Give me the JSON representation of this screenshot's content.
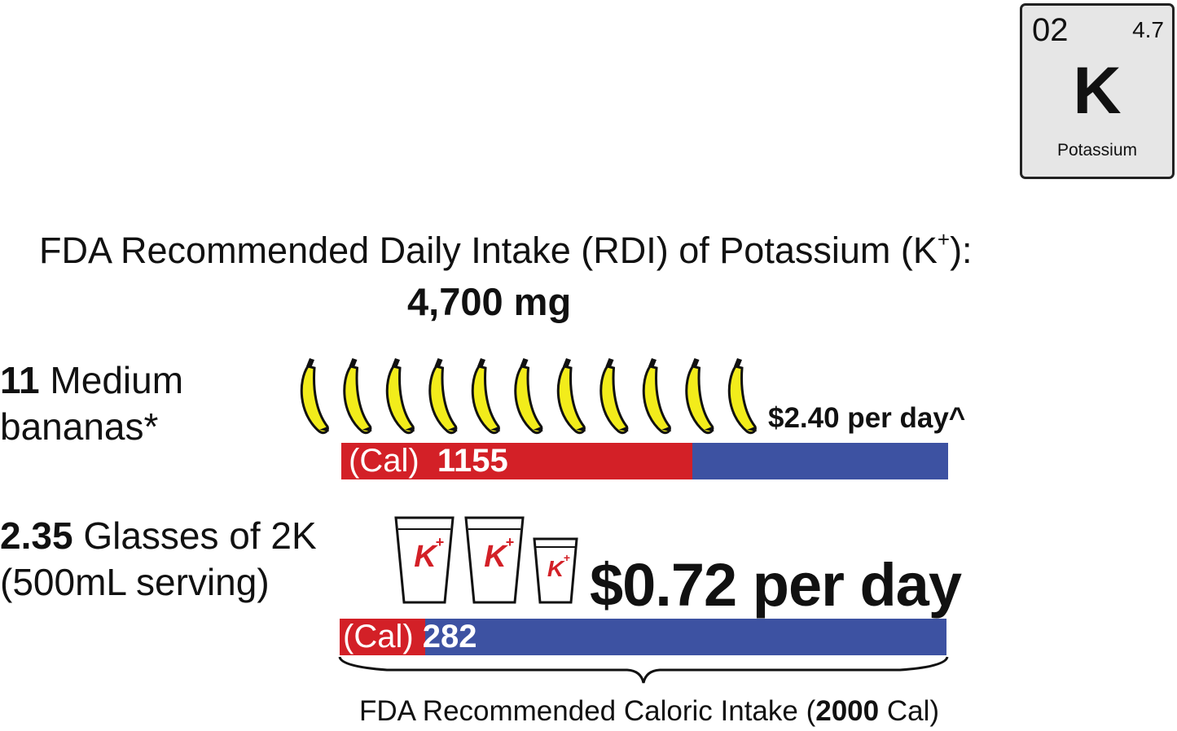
{
  "element_tile": {
    "atomic_number": "02",
    "weight": "4.7",
    "symbol": "K",
    "name": "Potassium",
    "background": "#e6e6e6"
  },
  "headline": {
    "text": "FDA Recommended Daily Intake (RDI) of Potassium (K",
    "superscript": "+",
    "suffix": "):",
    "amount": "4,700 mg"
  },
  "bananas": {
    "count": "11",
    "label_line1": "Medium",
    "label_line2": "bananas*",
    "icon_count": 11,
    "icon": "banana-icon",
    "cost": "$2.40 per day^",
    "cal_label": "(Cal)",
    "calories": "1155",
    "calorie_fraction": 0.578
  },
  "drink": {
    "count": "2.35",
    "label_line1": "Glasses of 2K",
    "label_line2": "(500mL serving)",
    "cup_logo": "K",
    "cup_logo_sup": "+",
    "cost": "$0.72 per day",
    "cal_label": "(Cal)",
    "calories": "282",
    "calorie_fraction": 0.141
  },
  "caption": {
    "prefix": "FDA Recommended Caloric Intake (",
    "value": "2000",
    "suffix": " Cal)"
  },
  "colors": {
    "red": "#d32027",
    "blue": "#3d52a2",
    "banana_yellow": "#f2ec1b"
  }
}
